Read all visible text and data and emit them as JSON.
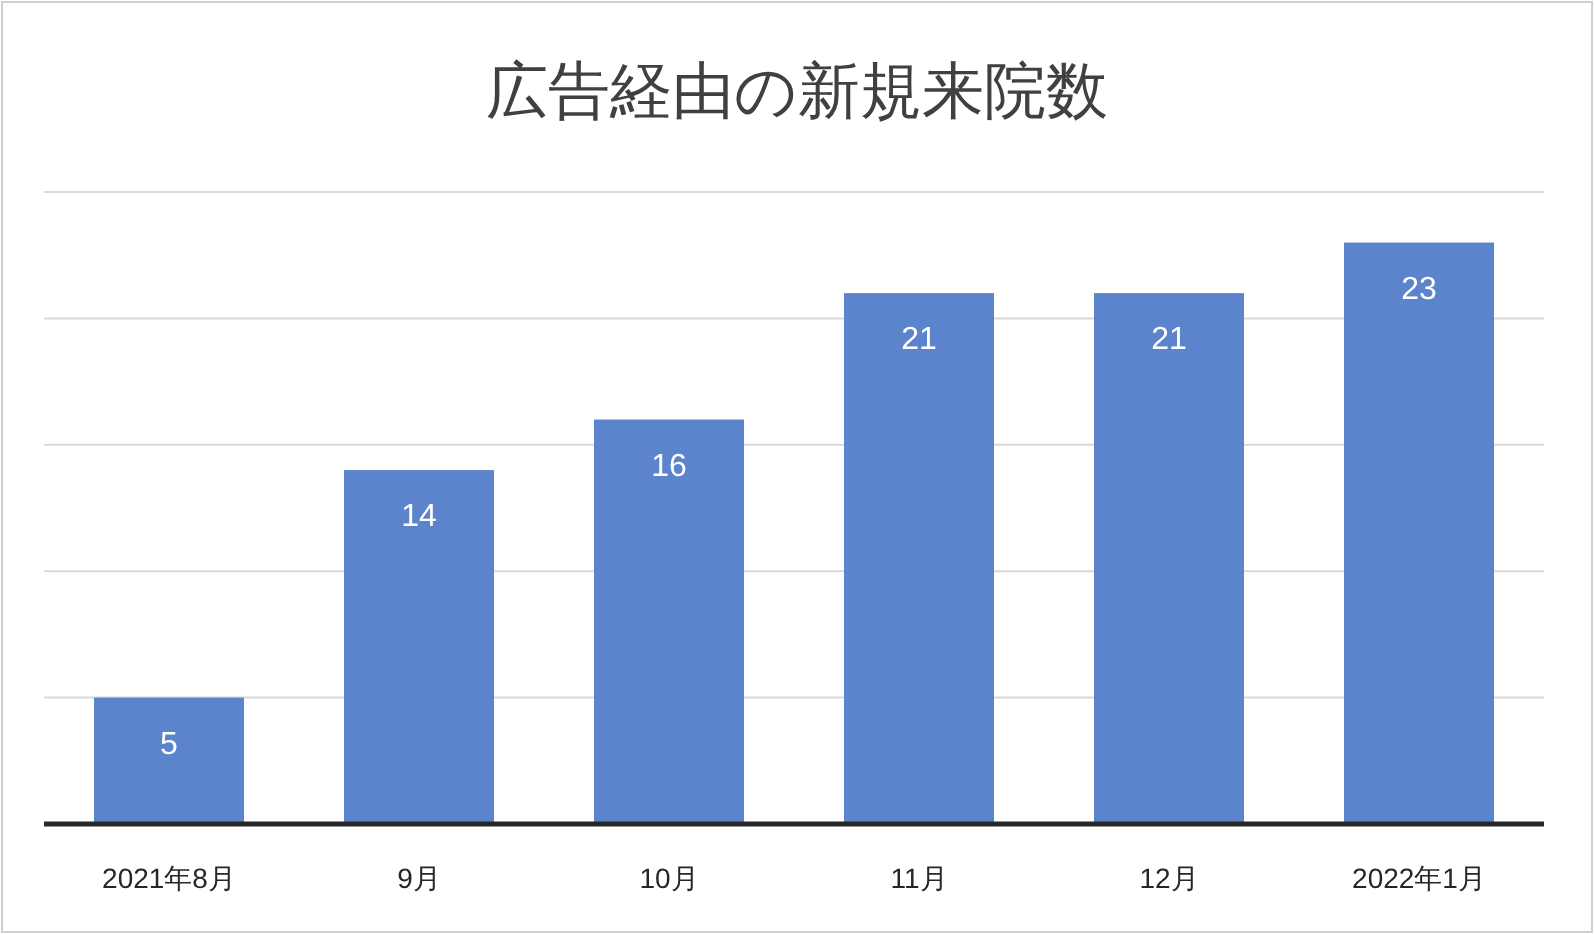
{
  "chart_data": {
    "type": "bar",
    "title": "広告経由の新規来院数",
    "categories": [
      "2021年8月",
      "9月",
      "10月",
      "11月",
      "12月",
      "2022年1月"
    ],
    "values": [
      5,
      14,
      16,
      21,
      21,
      23
    ],
    "color": "#5b84cc",
    "ylim": [
      0,
      25
    ],
    "yticks": [
      {
        "value": 0,
        "label": null
      },
      {
        "value": 5,
        "label": null
      },
      {
        "value": 10,
        "label": null
      },
      {
        "value": 15,
        "label": null
      },
      {
        "value": 20,
        "label": null
      },
      {
        "value": 25,
        "label": null
      }
    ],
    "grid": "y",
    "tick_labels": "x",
    "data_labels": true
  }
}
